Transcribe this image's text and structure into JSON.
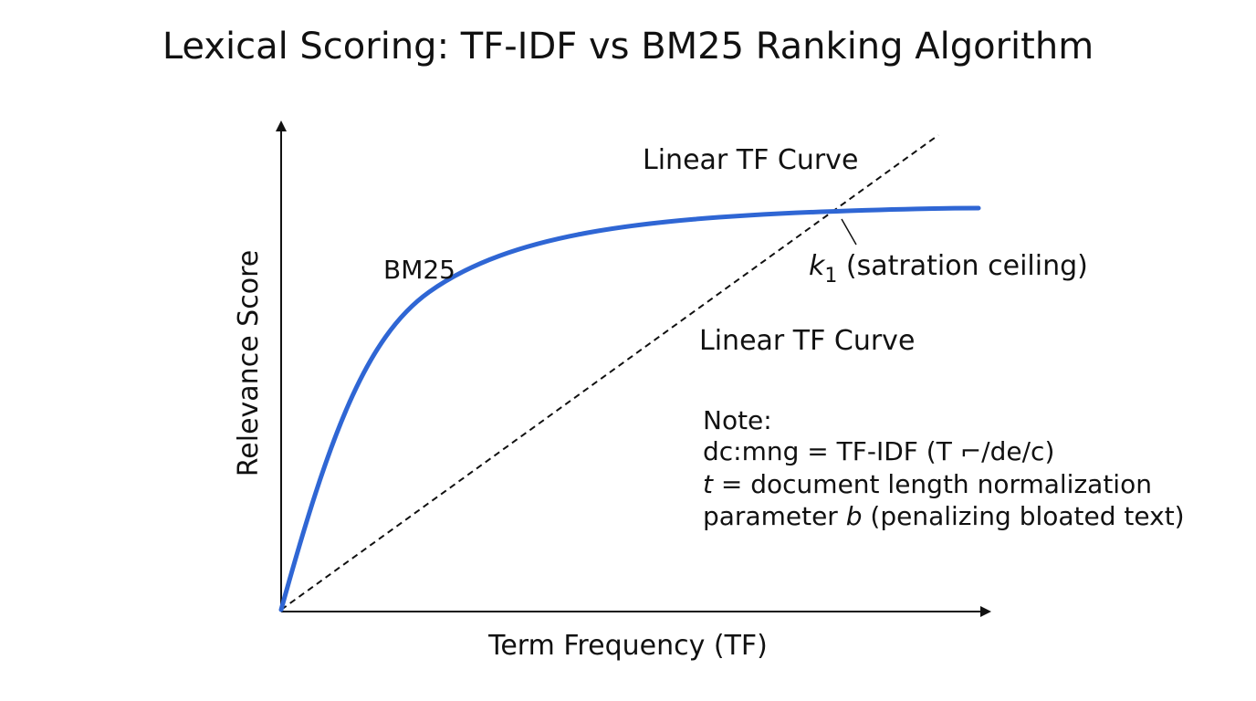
{
  "title": "Lexical Scoring: TF-IDF vs BM25 Ranking Algorithm",
  "axes": {
    "x_label": "Term Frequency (TF)",
    "y_label": "Relevance Score"
  },
  "curves": {
    "bm25_label": "BM25",
    "linear_label_top": "Linear TF Curve",
    "linear_label_mid": "Linear TF Curve"
  },
  "saturation": {
    "symbol": "k",
    "subscript": "1",
    "text": " (satration ceiling)"
  },
  "note": {
    "heading": "Note:",
    "line1": "dc:mng = TF-IDF (T  ⌐/de/c)",
    "line2_var": "t",
    "line2_rest": " = document length normalization",
    "line3_start": "parameter ",
    "line3_var": "b",
    "line3_rest": " (penalizing bloated text)"
  },
  "colors": {
    "bm25": "#2f66d4",
    "axis": "#111111",
    "linear": "#111111"
  }
}
